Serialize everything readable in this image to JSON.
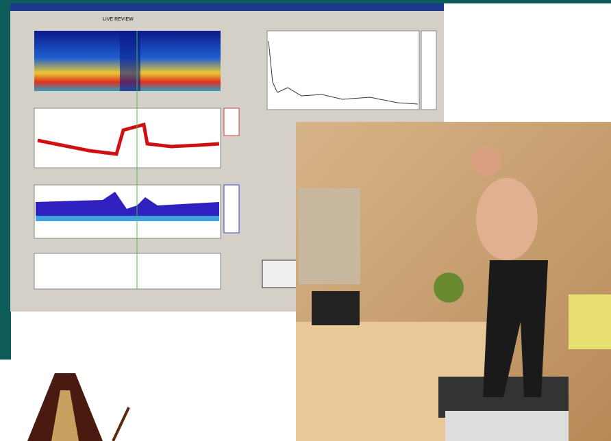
{
  "screenshot": {
    "header": "LIVE REVIEW"
  }
}
